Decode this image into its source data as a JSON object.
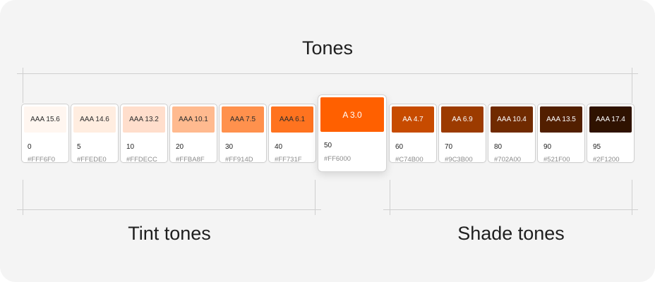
{
  "titles": {
    "main": "Tones",
    "tint": "Tint tones",
    "shade": "Shade tones"
  },
  "swatches": [
    {
      "tone": "0",
      "hex": "#FFF6F0",
      "contrast": "AAA 15.6",
      "text_color": "#2b2b2b"
    },
    {
      "tone": "5",
      "hex": "#FFEDE0",
      "contrast": "AAA 14.6",
      "text_color": "#2b2b2b"
    },
    {
      "tone": "10",
      "hex": "#FFDECC",
      "contrast": "AAA 13.2",
      "text_color": "#2b2b2b"
    },
    {
      "tone": "20",
      "hex": "#FFBA8F",
      "contrast": "AAA 10.1",
      "text_color": "#2b2b2b"
    },
    {
      "tone": "30",
      "hex": "#FF914D",
      "contrast": "AAA 7.5",
      "text_color": "#2b2b2b"
    },
    {
      "tone": "40",
      "hex": "#FF731F",
      "contrast": "AAA 6.1",
      "text_color": "#2b2b2b"
    },
    {
      "tone": "50",
      "hex": "#FF6000",
      "contrast": "A 3.0",
      "text_color": "#ffffff"
    },
    {
      "tone": "60",
      "hex": "#C74B00",
      "contrast": "AA 4.7",
      "text_color": "#ffffff"
    },
    {
      "tone": "70",
      "hex": "#9C3B00",
      "contrast": "AA 6.9",
      "text_color": "#ffffff"
    },
    {
      "tone": "80",
      "hex": "#702A00",
      "contrast": "AAA 10.4",
      "text_color": "#ffffff"
    },
    {
      "tone": "90",
      "hex": "#521F00",
      "contrast": "AAA 13.5",
      "text_color": "#ffffff"
    },
    {
      "tone": "95",
      "hex": "#2F1200",
      "contrast": "AAA 17.4",
      "text_color": "#ffffff"
    }
  ]
}
